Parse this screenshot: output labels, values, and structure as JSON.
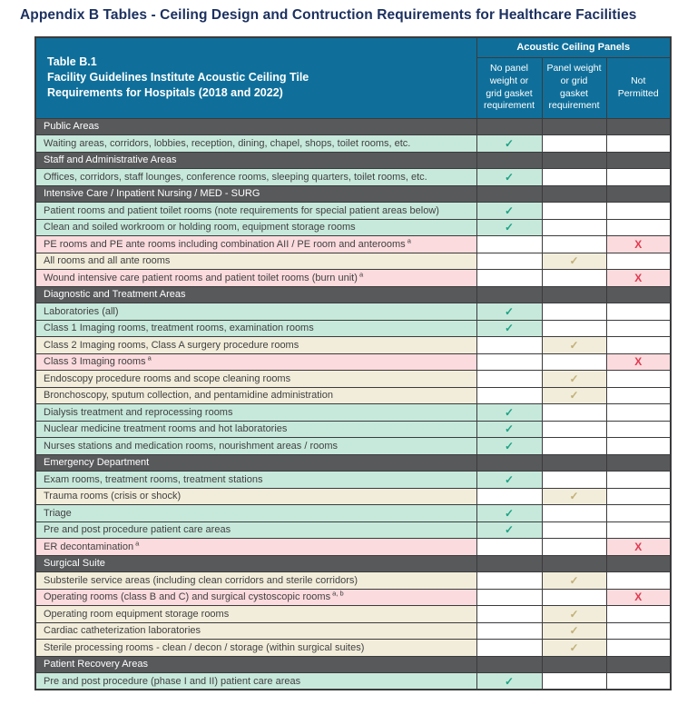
{
  "page_title": "Appendix B Tables - Ceiling Design and Contruction Requirements for Healthcare Facilities",
  "table": {
    "title_lines": [
      "Table B.1",
      "Facility Guidelines Institute Acoustic Ceiling Tile",
      "Requirements for Hospitals (2018 and 2022)"
    ],
    "column_group_header": "Acoustic Ceiling Panels",
    "columns": [
      "No panel weight or grid gasket requirement",
      "Panel weight or grid gasket requirement",
      "Not Permitted"
    ],
    "marks": {
      "allowed": "✓",
      "not_permitted": "X"
    },
    "rows": [
      {
        "type": "section",
        "label": "Public Areas"
      },
      {
        "type": "row",
        "label": "Waiting areas, corridors, lobbies, reception, dining, chapel, shops, toilet rooms, etc.",
        "sup": "",
        "mark": 1
      },
      {
        "type": "section",
        "label": "Staff and Administrative Areas"
      },
      {
        "type": "row",
        "label": "Offices, corridors, staff lounges, conference rooms, sleeping quarters, toilet rooms, etc.",
        "sup": "",
        "mark": 1
      },
      {
        "type": "section",
        "label": "Intensive Care / Inpatient Nursing / MED - SURG"
      },
      {
        "type": "row",
        "label": "Patient rooms and patient toilet rooms (note requirements for special patient areas below)",
        "sup": "",
        "mark": 1
      },
      {
        "type": "row",
        "label": "Clean and soiled workroom or holding room, equipment storage rooms",
        "sup": "",
        "mark": 1
      },
      {
        "type": "row",
        "label": "PE rooms and PE ante rooms including combination AII / PE room and anterooms",
        "sup": "a",
        "mark": 3
      },
      {
        "type": "row",
        "label": "All rooms and all ante rooms",
        "sup": "",
        "mark": 2
      },
      {
        "type": "row",
        "label": "Wound intensive care patient rooms and patient toilet rooms (burn unit)",
        "sup": "a",
        "mark": 3
      },
      {
        "type": "section",
        "label": "Diagnostic and Treatment Areas"
      },
      {
        "type": "row",
        "label": "Laboratories (all)",
        "sup": "",
        "mark": 1
      },
      {
        "type": "row",
        "label": "Class 1 Imaging rooms, treatment rooms, examination rooms",
        "sup": "",
        "mark": 1
      },
      {
        "type": "row",
        "label": "Class 2 Imaging rooms, Class A surgery procedure rooms",
        "sup": "",
        "mark": 2
      },
      {
        "type": "row",
        "label": "Class 3 Imaging rooms",
        "sup": "a",
        "mark": 3
      },
      {
        "type": "row",
        "label": "Endoscopy procedure rooms and scope cleaning rooms",
        "sup": "",
        "mark": 2
      },
      {
        "type": "row",
        "label": "Bronchoscopy, sputum collection, and pentamidine administration",
        "sup": "",
        "mark": 2
      },
      {
        "type": "row",
        "label": "Dialysis treatment and reprocessing rooms",
        "sup": "",
        "mark": 1
      },
      {
        "type": "row",
        "label": "Nuclear medicine treatment rooms and hot laboratories",
        "sup": "",
        "mark": 1
      },
      {
        "type": "row",
        "label": "Nurses stations and medication rooms, nourishment areas / rooms",
        "sup": "",
        "mark": 1
      },
      {
        "type": "section",
        "label": "Emergency Department"
      },
      {
        "type": "row",
        "label": "Exam rooms, treatment rooms, treatment stations",
        "sup": "",
        "mark": 1
      },
      {
        "type": "row",
        "label": "Trauma rooms (crisis or shock)",
        "sup": "",
        "mark": 2
      },
      {
        "type": "row",
        "label": "Triage",
        "sup": "",
        "mark": 1
      },
      {
        "type": "row",
        "label": "Pre and post procedure patient care areas",
        "sup": "",
        "mark": 1
      },
      {
        "type": "row",
        "label": "ER decontamination",
        "sup": "a",
        "mark": 3
      },
      {
        "type": "section",
        "label": "Surgical Suite"
      },
      {
        "type": "row",
        "label": "Substerile service areas (including clean corridors and sterile corridors)",
        "sup": "",
        "mark": 2
      },
      {
        "type": "row",
        "label": "Operating rooms (class B and C) and surgical cystoscopic rooms",
        "sup": "a, b",
        "mark": 3
      },
      {
        "type": "row",
        "label": "Operating room equipment storage rooms",
        "sup": "",
        "mark": 2
      },
      {
        "type": "row",
        "label": "Cardiac catheterization laboratories",
        "sup": "",
        "mark": 2
      },
      {
        "type": "row",
        "label": "Sterile processing rooms - clean / decon / storage (within surgical suites)",
        "sup": "",
        "mark": 2
      },
      {
        "type": "section",
        "label": "Patient Recovery Areas"
      },
      {
        "type": "row",
        "label": "Pre and post procedure (phase I and II) patient care areas",
        "sup": "",
        "mark": 1
      }
    ]
  },
  "colors": {
    "header_teal": "#0f6f9a",
    "title_navy": "#1d3160",
    "section_gray": "#58595b",
    "green_row_bg": "#c7e9db",
    "green_check": "#1ea385",
    "tan_row_bg": "#f2edda",
    "tan_check": "#c1b077",
    "pink_row_bg": "#fbdbdd",
    "red_x": "#e13a50",
    "grid_border": "#3b3b3d",
    "body_text": "#414042"
  }
}
